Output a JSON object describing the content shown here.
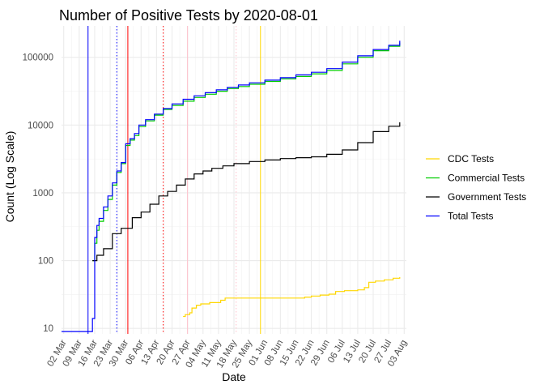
{
  "chart_data": {
    "type": "line",
    "title": "Number of Positive Tests by  2020-08-01",
    "xlabel": "Date",
    "ylabel": "Count (Log Scale)",
    "x_scale": "date",
    "y_scale": "log10",
    "xlim": [
      "2020-03-01",
      "2020-08-04"
    ],
    "ylim": [
      8.3,
      290000
    ],
    "x_ticks": [
      "2020-03-02",
      "2020-03-09",
      "2020-03-16",
      "2020-03-23",
      "2020-03-30",
      "2020-04-06",
      "2020-04-13",
      "2020-04-20",
      "2020-04-27",
      "2020-05-04",
      "2020-05-11",
      "2020-05-18",
      "2020-05-25",
      "2020-06-01",
      "2020-06-08",
      "2020-06-15",
      "2020-06-22",
      "2020-06-29",
      "2020-07-06",
      "2020-07-13",
      "2020-07-20",
      "2020-07-27",
      "2020-08-03"
    ],
    "x_tick_labels": [
      "02 Mar",
      "09 Mar",
      "16 Mar",
      "23 Mar",
      "30 Mar",
      "06 Apr",
      "13 Apr",
      "20 Apr",
      "27 Apr",
      "04 May",
      "11 May",
      "18 May",
      "25 May",
      "01 Jun",
      "08 Jun",
      "15 Jun",
      "22 Jun",
      "29 Jun",
      "06 Jul",
      "13 Jul",
      "20 Jul",
      "27 Jul",
      "03 Aug"
    ],
    "y_ticks": [
      10,
      100,
      1000,
      10000,
      100000
    ],
    "y_tick_labels": [
      "10",
      "100",
      "1000",
      "10000",
      "100000"
    ],
    "grid": true,
    "legend_position": "right",
    "reference_lines": [
      {
        "x": "2020-03-13",
        "color": "#0000ff",
        "style": "solid"
      },
      {
        "x": "2020-03-26",
        "color": "#0000ff",
        "style": "dotted"
      },
      {
        "x": "2020-03-31",
        "color": "#ff0000",
        "style": "solid"
      },
      {
        "x": "2020-04-16",
        "color": "#ff0000",
        "style": "dotted"
      },
      {
        "x": "2020-04-27",
        "color": "#ffc0cb",
        "style": "solid"
      },
      {
        "x": "2020-05-19",
        "color": "#ffc0cb",
        "style": "dotted"
      },
      {
        "x": "2020-05-30",
        "color": "#ffd700",
        "style": "solid"
      }
    ],
    "series": [
      {
        "name": "CDC Tests",
        "color": "#ffd700",
        "points": [
          [
            "2020-04-25",
            15
          ],
          [
            "2020-04-26",
            16
          ],
          [
            "2020-04-28",
            17
          ],
          [
            "2020-04-29",
            20
          ],
          [
            "2020-05-01",
            22
          ],
          [
            "2020-05-03",
            23
          ],
          [
            "2020-05-07",
            24
          ],
          [
            "2020-05-12",
            26
          ],
          [
            "2020-05-14",
            28
          ],
          [
            "2020-05-20",
            28
          ],
          [
            "2020-05-28",
            28
          ],
          [
            "2020-06-07",
            28
          ],
          [
            "2020-06-15",
            28
          ],
          [
            "2020-06-19",
            29
          ],
          [
            "2020-06-22",
            30
          ],
          [
            "2020-06-26",
            31
          ],
          [
            "2020-06-30",
            32
          ],
          [
            "2020-07-03",
            35
          ],
          [
            "2020-07-07",
            36
          ],
          [
            "2020-07-13",
            37
          ],
          [
            "2020-07-16",
            40
          ],
          [
            "2020-07-18",
            48
          ],
          [
            "2020-07-21",
            50
          ],
          [
            "2020-07-25",
            52
          ],
          [
            "2020-07-29",
            55
          ],
          [
            "2020-08-01",
            57
          ]
        ]
      },
      {
        "name": "Commercial Tests",
        "color": "#00cd00",
        "points": [
          [
            "2020-03-15",
            100
          ],
          [
            "2020-03-16",
            180
          ],
          [
            "2020-03-17",
            280
          ],
          [
            "2020-03-18",
            380
          ],
          [
            "2020-03-20",
            550
          ],
          [
            "2020-03-22",
            800
          ],
          [
            "2020-03-24",
            1300
          ],
          [
            "2020-03-26",
            2000
          ],
          [
            "2020-03-28",
            2700
          ],
          [
            "2020-03-30",
            5000
          ],
          [
            "2020-04-01",
            6000
          ],
          [
            "2020-04-03",
            7000
          ],
          [
            "2020-04-05",
            9500
          ],
          [
            "2020-04-08",
            11500
          ],
          [
            "2020-04-12",
            14000
          ],
          [
            "2020-04-16",
            17000
          ],
          [
            "2020-04-20",
            19500
          ],
          [
            "2020-04-25",
            22500
          ],
          [
            "2020-04-30",
            25500
          ],
          [
            "2020-05-05",
            28500
          ],
          [
            "2020-05-10",
            31500
          ],
          [
            "2020-05-15",
            34500
          ],
          [
            "2020-05-20",
            37000
          ],
          [
            "2020-05-25",
            40000
          ],
          [
            "2020-06-01",
            44000
          ],
          [
            "2020-06-08",
            48000
          ],
          [
            "2020-06-15",
            52000
          ],
          [
            "2020-06-22",
            57000
          ],
          [
            "2020-06-29",
            64000
          ],
          [
            "2020-07-06",
            80000
          ],
          [
            "2020-07-13",
            100000
          ],
          [
            "2020-07-20",
            125000
          ],
          [
            "2020-07-27",
            145000
          ],
          [
            "2020-08-01",
            165000
          ]
        ]
      },
      {
        "name": "Government Tests",
        "color": "#000000",
        "points": [
          [
            "2020-03-15",
            100
          ],
          [
            "2020-03-17",
            120
          ],
          [
            "2020-03-20",
            150
          ],
          [
            "2020-03-24",
            250
          ],
          [
            "2020-03-28",
            300
          ],
          [
            "2020-04-02",
            430
          ],
          [
            "2020-04-06",
            520
          ],
          [
            "2020-04-10",
            680
          ],
          [
            "2020-04-14",
            900
          ],
          [
            "2020-04-18",
            1050
          ],
          [
            "2020-04-22",
            1300
          ],
          [
            "2020-04-26",
            1600
          ],
          [
            "2020-04-30",
            1900
          ],
          [
            "2020-05-04",
            2100
          ],
          [
            "2020-05-08",
            2300
          ],
          [
            "2020-05-13",
            2500
          ],
          [
            "2020-05-18",
            2700
          ],
          [
            "2020-05-25",
            2900
          ],
          [
            "2020-06-01",
            3050
          ],
          [
            "2020-06-08",
            3200
          ],
          [
            "2020-06-15",
            3300
          ],
          [
            "2020-06-22",
            3400
          ],
          [
            "2020-06-29",
            3700
          ],
          [
            "2020-07-06",
            4300
          ],
          [
            "2020-07-13",
            5500
          ],
          [
            "2020-07-20",
            8000
          ],
          [
            "2020-07-27",
            9600
          ],
          [
            "2020-08-01",
            11000
          ]
        ]
      },
      {
        "name": "Total Tests",
        "color": "#0000ff",
        "points": [
          [
            "2020-03-01",
            9
          ],
          [
            "2020-03-15",
            9
          ],
          [
            "2020-03-15",
            14
          ],
          [
            "2020-03-16",
            220
          ],
          [
            "2020-03-17",
            330
          ],
          [
            "2020-03-18",
            420
          ],
          [
            "2020-03-20",
            620
          ],
          [
            "2020-03-22",
            900
          ],
          [
            "2020-03-24",
            1400
          ],
          [
            "2020-03-26",
            2100
          ],
          [
            "2020-03-28",
            2800
          ],
          [
            "2020-03-30",
            5300
          ],
          [
            "2020-04-01",
            6300
          ],
          [
            "2020-04-03",
            7500
          ],
          [
            "2020-04-05",
            10000
          ],
          [
            "2020-04-08",
            12000
          ],
          [
            "2020-04-12",
            14500
          ],
          [
            "2020-04-16",
            17500
          ],
          [
            "2020-04-20",
            20500
          ],
          [
            "2020-04-25",
            24000
          ],
          [
            "2020-04-30",
            27000
          ],
          [
            "2020-05-05",
            30000
          ],
          [
            "2020-05-10",
            33000
          ],
          [
            "2020-05-15",
            36000
          ],
          [
            "2020-05-20",
            39000
          ],
          [
            "2020-05-25",
            42000
          ],
          [
            "2020-06-01",
            46000
          ],
          [
            "2020-06-08",
            50000
          ],
          [
            "2020-06-15",
            55000
          ],
          [
            "2020-06-22",
            60000
          ],
          [
            "2020-06-29",
            68000
          ],
          [
            "2020-07-06",
            85000
          ],
          [
            "2020-07-13",
            105000
          ],
          [
            "2020-07-20",
            130000
          ],
          [
            "2020-07-27",
            150000
          ],
          [
            "2020-08-01",
            175000
          ]
        ]
      }
    ]
  }
}
